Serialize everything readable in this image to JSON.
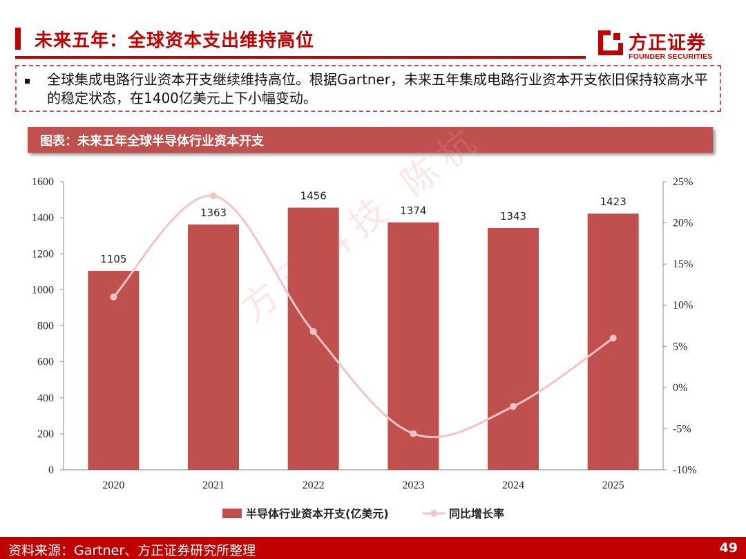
{
  "header": {
    "title": "未来五年：全球资本支出维持高位",
    "logo_cn": "方正证券",
    "logo_en": "FOUNDER SECURITIES"
  },
  "bullet": {
    "text": "全球集成电路行业资本开支继续维持高位。根据Gartner，未来五年集成电路行业资本开支依旧保持较高水平的稳定状态，在1400亿美元上下小幅变动。"
  },
  "chart_banner": "图表：未来五年全球半导体行业资本开支",
  "watermark": "方正科技 陈杭",
  "chart_data": {
    "type": "bar",
    "categories": [
      "2020",
      "2021",
      "2022",
      "2023",
      "2024",
      "2025"
    ],
    "series": [
      {
        "name": "半导体行业资本开支(亿美元)",
        "type": "bar",
        "axis": "left",
        "values": [
          1105,
          1363,
          1456,
          1374,
          1343,
          1423
        ],
        "color": "#c0504d"
      },
      {
        "name": "同比增长率",
        "type": "line",
        "axis": "right",
        "smooth": true,
        "values": [
          11.0,
          23.3,
          6.8,
          -5.6,
          -2.3,
          6.0
        ],
        "color": "#f2c4c4"
      }
    ],
    "data_labels": [
      "1105",
      "1363",
      "1456",
      "1374",
      "1343",
      "1423"
    ],
    "y_left": {
      "min": 0,
      "max": 1600,
      "ticks": [
        "0",
        "200",
        "400",
        "600",
        "800",
        "1000",
        "1200",
        "1400",
        "1600"
      ]
    },
    "y_right": {
      "min": -10,
      "max": 25,
      "ticks": [
        "-10%",
        "-5%",
        "0%",
        "5%",
        "10%",
        "15%",
        "20%",
        "25%"
      ]
    },
    "legend_position": "bottom",
    "grid": false
  },
  "footer": {
    "source": "资料来源：Gartner、方正证券研究所整理",
    "page": "49"
  }
}
